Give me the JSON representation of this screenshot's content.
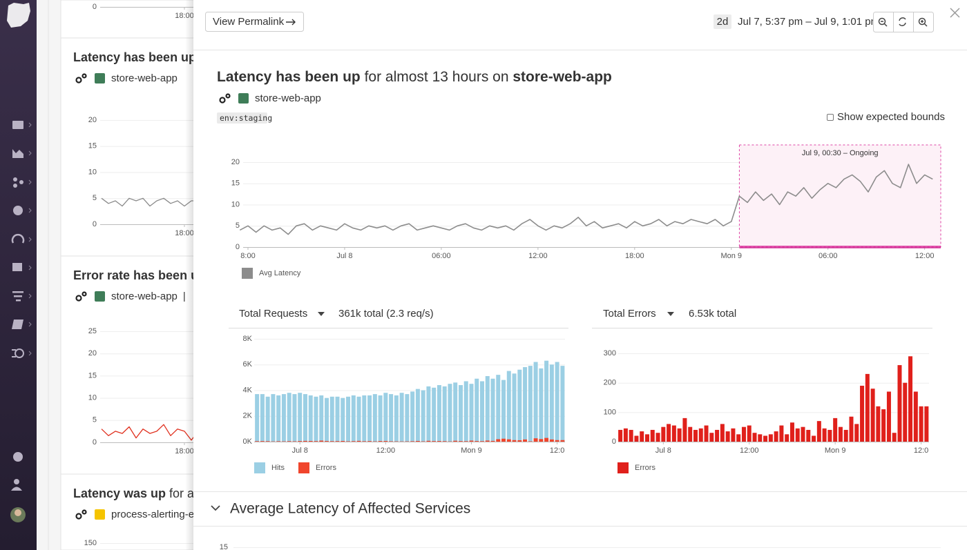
{
  "header": {
    "button": "View Permalink",
    "range_badge": "2d",
    "time_range": "Jul 7, 5:37 pm – Jul 9, 1:01 pm"
  },
  "background_cards": [
    {
      "yticks": [
        0
      ],
      "xticks": [
        {
          "value": 18,
          "label": "18:00"
        }
      ],
      "xlim": [
        5.8,
        21.3
      ],
      "ylim": [
        0,
        20
      ]
    },
    {
      "title": "Latency has been up",
      "tag": "store-web-app",
      "tag_color": "#3f7d58",
      "color": "#8a8a8a",
      "xlim": [
        5.8,
        21.3
      ],
      "ylim": [
        0,
        20
      ],
      "yticks": [
        0,
        5,
        10,
        15,
        20
      ],
      "xticks": [
        {
          "value": 18,
          "label": "18:00"
        }
      ],
      "x": [
        6,
        7,
        8,
        9,
        10,
        11,
        12,
        13,
        14,
        15,
        16,
        17,
        18,
        19,
        20
      ],
      "values": [
        5,
        4,
        4.5,
        3.5,
        5,
        4.5,
        5,
        3.5,
        4.5,
        5,
        4,
        4.5,
        3.5,
        4.5,
        4.5
      ]
    },
    {
      "title": "Error rate has been u",
      "tag": "store-web-app",
      "separator": "|",
      "tag_color": "#3f7d58",
      "color": "#e0301e",
      "xlim": [
        5.8,
        21.3
      ],
      "ylim": [
        0,
        25
      ],
      "yticks": [
        0,
        5,
        10,
        15,
        20,
        25
      ],
      "xticks": [
        {
          "value": 18,
          "label": "18:00"
        }
      ],
      "x": [
        6,
        7,
        8,
        9,
        10,
        11,
        12,
        13,
        14,
        15,
        16,
        17,
        18,
        19,
        20
      ],
      "values": [
        3,
        1.5,
        2.5,
        2,
        3.5,
        1,
        3,
        2,
        2.5,
        4,
        1.5,
        3,
        2.5,
        0.5,
        2.5
      ]
    },
    {
      "title": "Latency was up",
      "title_rest": " for a",
      "tag": "process-alerting-ev",
      "tag_color": "#f5c400",
      "ylim": [
        0,
        150
      ],
      "xlim": [
        5.8,
        21.3
      ],
      "yticks": [
        150
      ]
    }
  ],
  "panel": {
    "title_parts": [
      {
        "text": "Latency has been up",
        "bold": true
      },
      {
        "text": " for almost 13 hours on ",
        "bold": false
      },
      {
        "text": "store-web-app",
        "bold": true
      }
    ],
    "tag": "store-web-app",
    "tag_color": "#3f7d58",
    "env": "env:staging",
    "checkbox": "Show expected bounds",
    "section": "Average Latency of Affected Services",
    "section_ytick": 15
  },
  "main_chart": {
    "type": "line",
    "xlim": [
      -6.6,
      37
    ],
    "ylim": [
      0,
      20
    ],
    "yticks": [
      0,
      5,
      10,
      15,
      20
    ],
    "grid": true,
    "xticks": [
      {
        "value": -6,
        "label": "8:00"
      },
      {
        "value": 0,
        "label": "Jul 8"
      },
      {
        "value": 6,
        "label": "06:00"
      },
      {
        "value": 12,
        "label": "12:00"
      },
      {
        "value": 18,
        "label": "18:00"
      },
      {
        "value": 24,
        "label": "Mon 9"
      },
      {
        "value": 30,
        "label": "06:00"
      },
      {
        "value": 36,
        "label": "12:00"
      }
    ],
    "annotation": {
      "text": "Jul 9, 00:30 – Ongoing",
      "start": 24.5,
      "color": "#d6168f"
    },
    "x": [
      -6.5,
      -6,
      -5.5,
      -5,
      -4.5,
      -4,
      -3.5,
      -3,
      -2.5,
      -2,
      -1.5,
      -1,
      -0.5,
      0,
      0.5,
      1,
      1.5,
      2,
      2.5,
      3,
      3.5,
      4,
      4.5,
      5,
      5.5,
      6,
      6.5,
      7,
      7.5,
      8,
      8.5,
      9,
      9.5,
      10,
      10.5,
      11,
      11.5,
      12,
      12.5,
      13,
      13.5,
      14,
      14.5,
      15,
      15.5,
      16,
      16.5,
      17,
      17.5,
      18,
      18.5,
      19,
      19.5,
      20,
      20.5,
      21,
      21.5,
      22,
      22.5,
      23,
      23.5,
      24,
      24.5,
      25,
      25.5,
      26,
      26.5,
      27,
      27.5,
      28,
      28.5,
      29,
      29.5,
      30,
      30.5,
      31,
      31.5,
      32,
      32.5,
      33,
      33.5,
      34,
      34.5,
      35,
      35.5,
      36,
      36.5
    ],
    "series": [
      {
        "name": "Avg Latency",
        "color": "#8c8c8c",
        "values": [
          4,
          5,
          3.5,
          5,
          4,
          4.5,
          3,
          5,
          5.5,
          4,
          5,
          4.5,
          4,
          5.5,
          4.5,
          4,
          5,
          4.5,
          5,
          4,
          5,
          5.5,
          4,
          4.5,
          5,
          4.5,
          4,
          5,
          5.5,
          4.5,
          4,
          5,
          4.5,
          5,
          4,
          5.5,
          6.5,
          5,
          4,
          5,
          4.5,
          5.5,
          7,
          5,
          6,
          4.5,
          5,
          5.5,
          4.5,
          6,
          5,
          5.5,
          6.5,
          5,
          6,
          5.5,
          6.5,
          6,
          5.5,
          6.5,
          5,
          6,
          12,
          10.5,
          13,
          11,
          12.5,
          10,
          13,
          12,
          14,
          11.5,
          13.5,
          15,
          14,
          16,
          17,
          15.5,
          13,
          16.5,
          18,
          15,
          14,
          19.5,
          15,
          17,
          16
        ]
      }
    ]
  },
  "requests_chart": {
    "type": "bar",
    "title": "Total Requests",
    "summary": "361k total (2.3 req/s)",
    "xlim": [
      -6.4,
      37.1
    ],
    "ylim": [
      0,
      8000
    ],
    "yticks": [
      {
        "value": 0,
        "label": "0K"
      },
      {
        "value": 2000,
        "label": "2K"
      },
      {
        "value": 4000,
        "label": "4K"
      },
      {
        "value": 6000,
        "label": "6K"
      },
      {
        "value": 8000,
        "label": "8K"
      }
    ],
    "xticks": [
      {
        "value": 0,
        "label": "Jul 8"
      },
      {
        "value": 12,
        "label": "12:00"
      },
      {
        "value": 24,
        "label": "Mon 9"
      },
      {
        "value": 36,
        "label": "12:0"
      }
    ],
    "x": [
      -6,
      -5.25,
      -4.5,
      -3.75,
      -3,
      -2.25,
      -1.5,
      -0.75,
      0,
      0.75,
      1.5,
      2.25,
      3,
      3.75,
      4.5,
      5.25,
      6,
      6.75,
      7.5,
      8.25,
      9,
      9.75,
      10.5,
      11.25,
      12,
      12.75,
      13.5,
      14.25,
      15,
      15.75,
      16.5,
      17.25,
      18,
      18.75,
      19.5,
      20.25,
      21,
      21.75,
      22.5,
      23.25,
      24,
      24.75,
      25.5,
      26.25,
      27,
      27.75,
      28.5,
      29.25,
      30,
      30.75,
      31.5,
      32.25,
      33,
      33.75,
      34.5,
      35.25,
      36,
      36.75
    ],
    "series": [
      {
        "name": "Hits",
        "color": "#9bcfe4",
        "values": [
          3700,
          3700,
          3500,
          3700,
          3600,
          3700,
          3800,
          3700,
          3800,
          3700,
          3600,
          3500,
          3600,
          3400,
          3500,
          3500,
          3400,
          3500,
          3600,
          3500,
          3600,
          3600,
          3700,
          3600,
          3800,
          3700,
          3600,
          3800,
          3700,
          3900,
          4100,
          4000,
          4300,
          4200,
          4400,
          4300,
          4500,
          4600,
          4400,
          4700,
          4500,
          4900,
          4700,
          5100,
          4900,
          5200,
          4800,
          5500,
          5300,
          5600,
          5800,
          5900,
          6200,
          5700,
          6300,
          6000,
          6200,
          5900
        ]
      },
      {
        "name": "Errors",
        "color": "#f0452c",
        "values": [
          40,
          45,
          40,
          20,
          35,
          25,
          40,
          30,
          50,
          60,
          55,
          45,
          80,
          50,
          40,
          45,
          55,
          30,
          40,
          60,
          35,
          45,
          25,
          50,
          55,
          30,
          25,
          20,
          25,
          35,
          55,
          25,
          65,
          45,
          50,
          40,
          20,
          70,
          45,
          40,
          80,
          50,
          40,
          85,
          60,
          190,
          230,
          180,
          120,
          110,
          170,
          30,
          260,
          200,
          290,
          170,
          120,
          120
        ]
      }
    ]
  },
  "errors_chart": {
    "type": "bar",
    "title": "Total Errors",
    "summary": "6.53k total",
    "xlim": [
      -6.3,
      37.1
    ],
    "ylim": [
      0,
      320
    ],
    "yticks": [
      0,
      100,
      200,
      300
    ],
    "xticks": [
      {
        "value": 0,
        "label": "Jul 8"
      },
      {
        "value": 12,
        "label": "12:00"
      },
      {
        "value": 24,
        "label": "Mon 9"
      },
      {
        "value": 36,
        "label": "12:0"
      }
    ],
    "x": [
      -6,
      -5.25,
      -4.5,
      -3.75,
      -3,
      -2.25,
      -1.5,
      -0.75,
      0,
      0.75,
      1.5,
      2.25,
      3,
      3.75,
      4.5,
      5.25,
      6,
      6.75,
      7.5,
      8.25,
      9,
      9.75,
      10.5,
      11.25,
      12,
      12.75,
      13.5,
      14.25,
      15,
      15.75,
      16.5,
      17.25,
      18,
      18.75,
      19.5,
      20.25,
      21,
      21.75,
      22.5,
      23.25,
      24,
      24.75,
      25.5,
      26.25,
      27,
      27.75,
      28.5,
      29.25,
      30,
      30.75,
      31.5,
      32.25,
      33,
      33.75,
      34.5,
      35.25,
      36,
      36.75
    ],
    "series": [
      {
        "name": "Errors",
        "color": "#e0201b",
        "values": [
          40,
          45,
          40,
          20,
          35,
          25,
          40,
          30,
          50,
          60,
          55,
          45,
          80,
          50,
          40,
          45,
          55,
          30,
          40,
          60,
          35,
          45,
          25,
          50,
          55,
          30,
          25,
          20,
          25,
          35,
          55,
          25,
          65,
          45,
          50,
          40,
          20,
          70,
          45,
          40,
          80,
          50,
          40,
          85,
          60,
          190,
          230,
          180,
          120,
          110,
          170,
          30,
          260,
          200,
          290,
          170,
          120,
          120
        ]
      }
    ]
  }
}
